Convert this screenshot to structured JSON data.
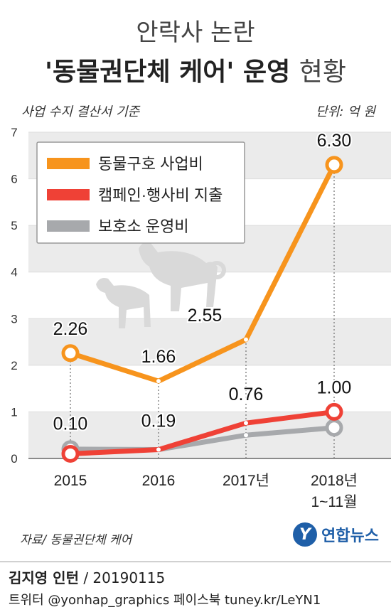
{
  "header": {
    "title_line1": "안락사 논란",
    "title_line2_bold": "'동물권단체 케어' 운영",
    "title_line2_rest": "현황",
    "subtitle_left": "사업 수지 결산서 기준",
    "unit": "단위: 억 원"
  },
  "footer": {
    "source": "자료/ 동물권단체 케어",
    "logo_mark": "Y",
    "logo_text": "연합뉴스",
    "author": "김지영 인턴",
    "date": " / 20190115",
    "social": "트위터 @yonhap_graphics  페이스북 tuney.kr/LeYN1"
  },
  "colors": {
    "orange": "#f7941d",
    "red": "#ef4136",
    "gray": "#a7a9ac",
    "band": "#ebebeb"
  },
  "chart_data": {
    "type": "line",
    "categories": [
      "2015",
      "2016",
      "2017년",
      "2018년 1~11월"
    ],
    "ylim": [
      0,
      7
    ],
    "yticks": [
      "0",
      "1",
      "2",
      "3",
      "4",
      "5",
      "6",
      "7"
    ],
    "legend_position": "top-left",
    "series": [
      {
        "name": "동물구호 사업비",
        "color": "#f7941d",
        "values": [
          2.26,
          1.66,
          2.55,
          6.3
        ],
        "labels": [
          "2.26",
          "1.66",
          "2.55",
          "6.30"
        ]
      },
      {
        "name": "캠페인·행사비 지출",
        "color": "#ef4136",
        "values": [
          0.1,
          0.19,
          0.76,
          1.0
        ],
        "labels": [
          "0.10",
          "0.19",
          "0.76",
          "1.00"
        ]
      },
      {
        "name": "보호소 운영비",
        "color": "#a7a9ac",
        "values": [
          0.2,
          0.19,
          0.5,
          0.66
        ],
        "labels": []
      }
    ]
  }
}
